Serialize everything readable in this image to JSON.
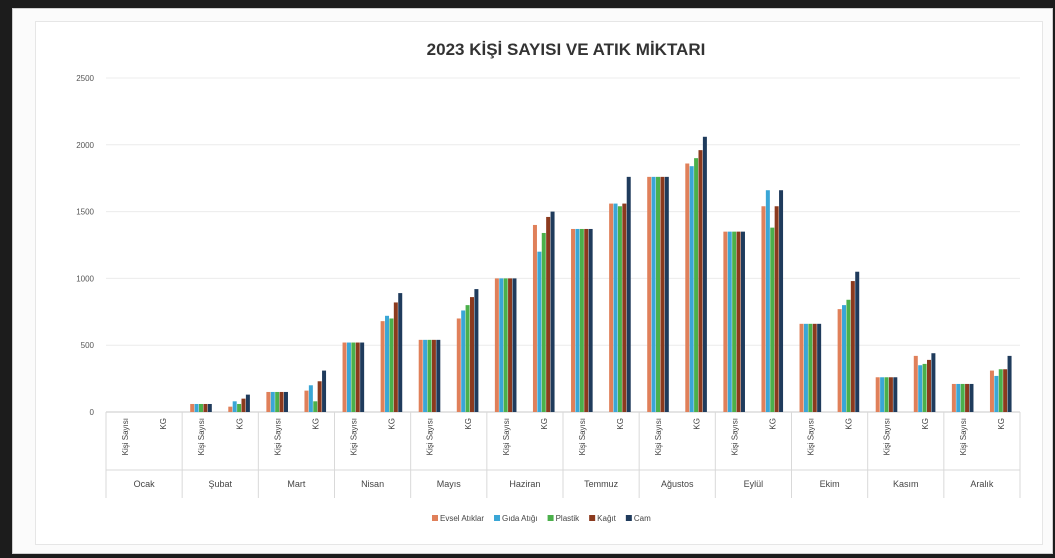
{
  "chart_data": {
    "type": "bar",
    "title": "2023 KİŞİ SAYISI VE ATIK MİKTARI",
    "xlabel": "",
    "ylabel": "",
    "ylim": [
      0,
      2500
    ],
    "yticks": [
      "0",
      "500",
      "1000",
      "1500",
      "2000",
      "2500"
    ],
    "grid": true,
    "legend_position": "bottom",
    "months": [
      "Ocak",
      "Şubat",
      "Mart",
      "Nisan",
      "Mayıs",
      "Haziran",
      "Temmuz",
      "Ağustos",
      "Eylül",
      "Ekim",
      "Kasım",
      "Aralık"
    ],
    "sub_categories": [
      "Kişi Sayısı",
      "KG"
    ],
    "series": [
      {
        "name": "Evsel Atıklar",
        "color": "#e0805a",
        "values": [
          0,
          0,
          60,
          40,
          150,
          160,
          520,
          680,
          540,
          700,
          1000,
          1400,
          1370,
          1560,
          1760,
          1860,
          1350,
          1540,
          660,
          770,
          260,
          420,
          210,
          310
        ]
      },
      {
        "name": "Gıda Atığı",
        "color": "#3aa6d6",
        "values": [
          0,
          0,
          60,
          80,
          150,
          200,
          520,
          720,
          540,
          760,
          1000,
          1200,
          1370,
          1560,
          1760,
          1840,
          1350,
          1660,
          660,
          800,
          260,
          350,
          210,
          270
        ]
      },
      {
        "name": "Plastik",
        "color": "#4bb04b",
        "values": [
          0,
          0,
          60,
          60,
          150,
          80,
          520,
          700,
          540,
          800,
          1000,
          1340,
          1370,
          1540,
          1760,
          1900,
          1350,
          1380,
          660,
          840,
          260,
          360,
          210,
          320
        ]
      },
      {
        "name": "Kağıt",
        "color": "#8b3a1e",
        "values": [
          0,
          0,
          60,
          100,
          150,
          230,
          520,
          820,
          540,
          860,
          1000,
          1460,
          1370,
          1560,
          1760,
          1960,
          1350,
          1540,
          660,
          980,
          260,
          390,
          210,
          320
        ]
      },
      {
        "name": "Cam",
        "color": "#1f3b5c",
        "values": [
          0,
          0,
          60,
          130,
          150,
          310,
          520,
          890,
          540,
          920,
          1000,
          1500,
          1370,
          1760,
          1760,
          2060,
          1350,
          1660,
          660,
          1050,
          260,
          440,
          210,
          420
        ]
      }
    ]
  }
}
